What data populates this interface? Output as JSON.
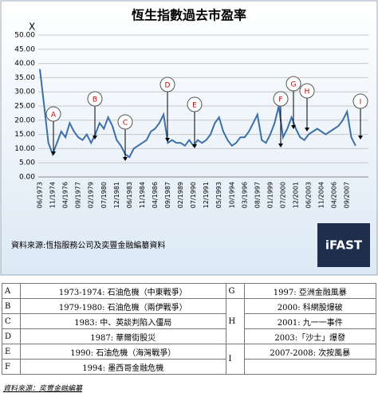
{
  "chart_data": {
    "type": "line",
    "title": "恆生指數過去市盈率",
    "y_label": "X",
    "categories": [
      "06/1973",
      null,
      null,
      "11/1974",
      null,
      null,
      "04/1976",
      null,
      null,
      "09/1977",
      null,
      null,
      "02/1979",
      null,
      null,
      "07/1980",
      null,
      null,
      "12/1981",
      null,
      null,
      "06/1983",
      null,
      null,
      "11/1984",
      null,
      null,
      "04/1986",
      null,
      null,
      "09/1987",
      null,
      null,
      "02/1989",
      null,
      null,
      "07/1990",
      null,
      null,
      "12/1991",
      null,
      null,
      "05/1993",
      null,
      null,
      "10/1994",
      null,
      null,
      "03/1996",
      null,
      null,
      "08/1997",
      null,
      null,
      "01/1999",
      null,
      null,
      "07/2000",
      null,
      null,
      "12/2001",
      null,
      null,
      "06/2003",
      null,
      null,
      "11/2004",
      null,
      null,
      "04/2006",
      null,
      null,
      "09/2007",
      null,
      null
    ],
    "values": [
      38,
      25,
      12,
      8,
      12,
      16,
      14,
      19,
      16,
      14,
      13,
      15,
      12,
      15,
      19,
      17,
      21,
      18,
      13,
      11,
      8,
      7,
      10,
      11,
      12,
      13,
      16,
      17,
      19,
      22,
      12,
      13,
      12,
      12,
      11,
      13,
      11,
      13,
      12,
      13,
      15,
      19,
      21,
      16,
      13,
      11,
      12,
      14,
      14,
      16,
      19,
      22,
      13,
      12,
      15,
      19,
      25,
      14,
      17,
      21,
      17,
      14,
      13,
      15,
      16,
      17,
      16,
      15,
      16,
      17,
      18,
      20,
      23,
      14,
      11
    ],
    "color": "#3d6fa8",
    "ylim": [
      0,
      50
    ],
    "yticks": [
      {
        "value": 0,
        "label": "0.00"
      },
      {
        "value": 5,
        "label": "5.00"
      },
      {
        "value": 10,
        "label": "10.00"
      },
      {
        "value": 15,
        "label": "15.00"
      },
      {
        "value": 20,
        "label": "20.00"
      },
      {
        "value": 25,
        "label": "25.00"
      },
      {
        "value": 30,
        "label": "30.00"
      },
      {
        "value": 35,
        "label": "35.00"
      },
      {
        "value": 40,
        "label": "40.00"
      },
      {
        "value": 45,
        "label": "45.00"
      },
      {
        "value": 50,
        "label": "50.00"
      }
    ],
    "grid": true,
    "annotations": [
      "A",
      "B",
      "C",
      "D",
      "E",
      "F",
      "G",
      "H",
      "I"
    ],
    "source": "資料來源:恆指服務公司及奕豐金融編纂資料",
    "logo": "iFAST"
  },
  "table": {
    "rows": [
      [
        "A",
        "1973-1974: 石油危機（中東戰爭）"
      ],
      [
        "B",
        "1979-1980: 石油危機（兩伊戰爭）"
      ],
      [
        "C",
        "1983: 中、英談判陷入僵局"
      ],
      [
        "D",
        "1987: 華爾街股災"
      ],
      [
        "E",
        "1990: 石油危機（海灣戰爭）"
      ],
      [
        "F",
        "1994: 墨西哥金融危機"
      ]
    ],
    "right": [
      {
        "letter": "G",
        "events": [
          "1997: 亞洲金融風暴"
        ]
      },
      {
        "letter": "H",
        "events": [
          "2000: 科網股爆破",
          "2001: 九一一事件",
          "2003:「沙士」爆發"
        ]
      },
      {
        "letter": "I",
        "events": [
          "2007-2008: 次按風暴"
        ]
      }
    ]
  },
  "footer": "資料來源：奕豐金融編纂"
}
